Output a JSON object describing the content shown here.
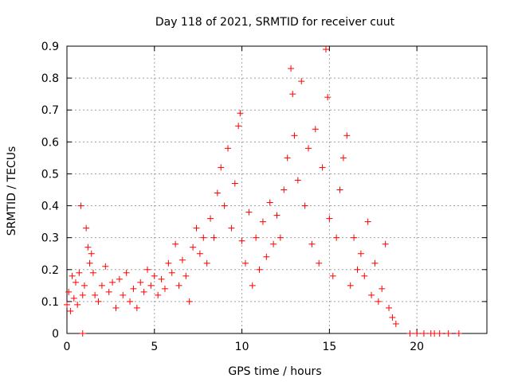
{
  "chart_data": {
    "type": "scatter",
    "title": "Day 118 of 2021, SRMTID for receiver cuut",
    "xlabel": "GPS time / hours",
    "ylabel": "SRMTID / TECUs",
    "xlim": [
      0,
      24
    ],
    "ylim": [
      0,
      0.9
    ],
    "xticks": [
      0,
      5,
      10,
      15,
      20
    ],
    "yticks": [
      0,
      0.1,
      0.2,
      0.3,
      0.4,
      0.5,
      0.6,
      0.7,
      0.8,
      0.9
    ],
    "grid": true,
    "marker": "+",
    "series_color": "#ff0000",
    "series": [
      {
        "name": "SRMTID",
        "points": [
          [
            0.0,
            0.09
          ],
          [
            0.1,
            0.13
          ],
          [
            0.2,
            0.07
          ],
          [
            0.3,
            0.18
          ],
          [
            0.4,
            0.11
          ],
          [
            0.5,
            0.16
          ],
          [
            0.6,
            0.09
          ],
          [
            0.7,
            0.19
          ],
          [
            0.8,
            0.4
          ],
          [
            0.9,
            0.12
          ],
          [
            1.0,
            0.15
          ],
          [
            1.1,
            0.33
          ],
          [
            1.2,
            0.27
          ],
          [
            1.3,
            0.22
          ],
          [
            1.4,
            0.25
          ],
          [
            1.5,
            0.19
          ],
          [
            1.6,
            0.12
          ],
          [
            1.8,
            0.1
          ],
          [
            2.0,
            0.15
          ],
          [
            2.2,
            0.21
          ],
          [
            2.4,
            0.13
          ],
          [
            2.6,
            0.16
          ],
          [
            2.8,
            0.08
          ],
          [
            3.0,
            0.17
          ],
          [
            3.2,
            0.12
          ],
          [
            3.4,
            0.19
          ],
          [
            3.6,
            0.1
          ],
          [
            3.8,
            0.14
          ],
          [
            4.0,
            0.08
          ],
          [
            4.2,
            0.16
          ],
          [
            4.4,
            0.13
          ],
          [
            4.6,
            0.2
          ],
          [
            4.8,
            0.15
          ],
          [
            5.0,
            0.18
          ],
          [
            5.2,
            0.12
          ],
          [
            5.4,
            0.17
          ],
          [
            5.6,
            0.14
          ],
          [
            5.8,
            0.22
          ],
          [
            6.0,
            0.19
          ],
          [
            6.2,
            0.28
          ],
          [
            6.4,
            0.15
          ],
          [
            6.6,
            0.23
          ],
          [
            6.8,
            0.18
          ],
          [
            7.0,
            0.1
          ],
          [
            7.2,
            0.27
          ],
          [
            7.4,
            0.33
          ],
          [
            7.6,
            0.25
          ],
          [
            7.8,
            0.3
          ],
          [
            8.0,
            0.22
          ],
          [
            8.2,
            0.36
          ],
          [
            8.4,
            0.3
          ],
          [
            8.6,
            0.44
          ],
          [
            8.8,
            0.52
          ],
          [
            9.0,
            0.4
          ],
          [
            9.2,
            0.58
          ],
          [
            9.4,
            0.33
          ],
          [
            9.6,
            0.47
          ],
          [
            9.8,
            0.65
          ],
          [
            9.9,
            0.69
          ],
          [
            10.0,
            0.29
          ],
          [
            10.2,
            0.22
          ],
          [
            10.4,
            0.38
          ],
          [
            10.6,
            0.15
          ],
          [
            10.8,
            0.3
          ],
          [
            11.0,
            0.2
          ],
          [
            11.2,
            0.35
          ],
          [
            11.4,
            0.24
          ],
          [
            11.6,
            0.41
          ],
          [
            11.8,
            0.28
          ],
          [
            12.0,
            0.37
          ],
          [
            12.2,
            0.3
          ],
          [
            12.4,
            0.45
          ],
          [
            12.6,
            0.55
          ],
          [
            12.8,
            0.83
          ],
          [
            12.9,
            0.75
          ],
          [
            13.0,
            0.62
          ],
          [
            13.2,
            0.48
          ],
          [
            13.4,
            0.79
          ],
          [
            13.6,
            0.4
          ],
          [
            13.8,
            0.58
          ],
          [
            14.0,
            0.28
          ],
          [
            14.2,
            0.64
          ],
          [
            14.4,
            0.22
          ],
          [
            14.6,
            0.52
          ],
          [
            14.8,
            0.89
          ],
          [
            14.9,
            0.74
          ],
          [
            15.0,
            0.36
          ],
          [
            15.2,
            0.18
          ],
          [
            15.4,
            0.3
          ],
          [
            15.6,
            0.45
          ],
          [
            15.8,
            0.55
          ],
          [
            16.0,
            0.62
          ],
          [
            16.2,
            0.15
          ],
          [
            16.4,
            0.3
          ],
          [
            16.6,
            0.2
          ],
          [
            16.8,
            0.25
          ],
          [
            17.0,
            0.18
          ],
          [
            17.2,
            0.35
          ],
          [
            17.4,
            0.12
          ],
          [
            17.6,
            0.22
          ],
          [
            17.8,
            0.1
          ],
          [
            18.0,
            0.14
          ],
          [
            18.2,
            0.28
          ],
          [
            18.4,
            0.08
          ],
          [
            18.6,
            0.05
          ],
          [
            18.8,
            0.03
          ],
          [
            19.6,
            0.0
          ],
          [
            20.0,
            0.0
          ],
          [
            20.4,
            0.0
          ],
          [
            20.8,
            0.0
          ],
          [
            21.0,
            0.0
          ],
          [
            21.3,
            0.0
          ],
          [
            21.8,
            0.0
          ],
          [
            22.4,
            0.0
          ],
          [
            0.9,
            0.0
          ]
        ]
      }
    ]
  }
}
